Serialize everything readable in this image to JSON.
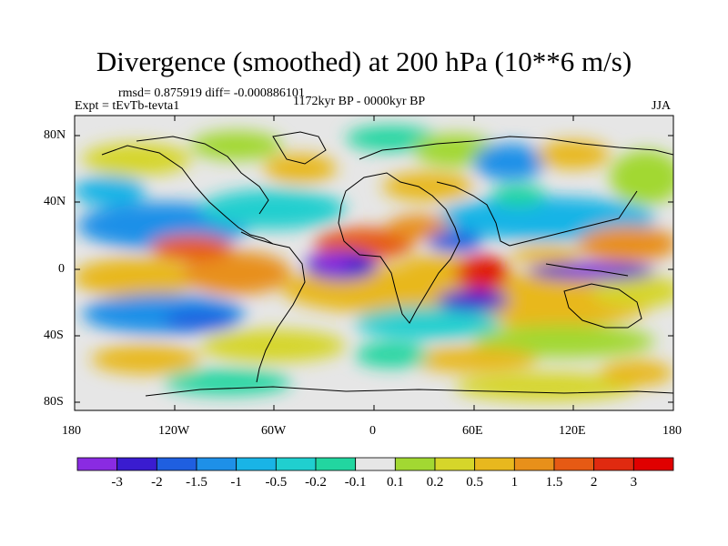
{
  "title": "Divergence (smoothed) at 200 hPa (10**6 m/s)",
  "stats": "rmsd= 0.875919 diff= -0.000886101",
  "experiment": "Expt = tEvTb-tevta1",
  "period": "1172kyr BP - 0000kyr BP",
  "season": "JJA",
  "lat_ticks": [
    "80N",
    "40N",
    "0",
    "40S",
    "80S"
  ],
  "lon_ticks": [
    "180",
    "120W",
    "60W",
    "0",
    "60E",
    "120E",
    "180"
  ],
  "colorbar": {
    "labels": [
      "-3",
      "-2",
      "-1.5",
      "-1",
      "-0.5",
      "-0.2",
      "-0.1",
      "0.1",
      "0.2",
      "0.5",
      "1",
      "1.5",
      "2",
      "3"
    ],
    "colors": [
      "#8a2be2",
      "#3a1cd0",
      "#1f5fe0",
      "#1e90e8",
      "#19b4e6",
      "#20cfcf",
      "#22d6a0",
      "#e6e6e6",
      "#a2d832",
      "#d6d62a",
      "#e8b81e",
      "#e8901a",
      "#e65a14",
      "#e02a10",
      "#e00000"
    ]
  },
  "colors": {
    "land_outline": "#000000",
    "background": "#e6e6e6"
  }
}
